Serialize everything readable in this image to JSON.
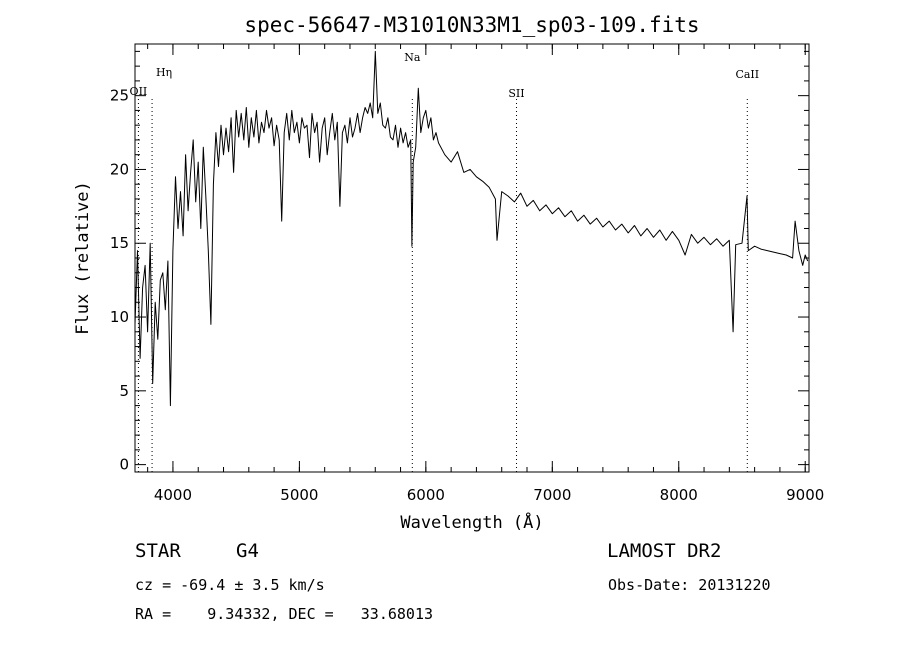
{
  "chart_data": {
    "type": "line",
    "title": "spec-56647-M31010N33M1_sp03-109.fits",
    "xlabel": "Wavelength (Å)",
    "ylabel": "Flux (relative)",
    "xlim": [
      3700,
      9030
    ],
    "ylim": [
      -0.5,
      28.5
    ],
    "xticks": [
      4000,
      5000,
      6000,
      7000,
      8000,
      9000
    ],
    "yticks": [
      0,
      5,
      10,
      15,
      20,
      25
    ],
    "grid": false,
    "legend": "none",
    "line_color": "#000000",
    "reference_lines": [
      {
        "label": "Hη",
        "x": 3835
      },
      {
        "label": "OII",
        "x": 3727
      },
      {
        "label": "Na",
        "x": 5893
      },
      {
        "label": "SII",
        "x": 6717
      },
      {
        "label": "CaII",
        "x": 8542
      }
    ],
    "series": [
      {
        "x": [
          3700,
          3720,
          3740,
          3760,
          3780,
          3800,
          3820,
          3840,
          3860,
          3880,
          3900,
          3920,
          3940,
          3960,
          3980,
          4000,
          4020,
          4040,
          4060,
          4080,
          4100,
          4120,
          4140,
          4160,
          4180,
          4200,
          4220,
          4240,
          4260,
          4280,
          4300,
          4320,
          4340,
          4360,
          4380,
          4400,
          4420,
          4440,
          4460,
          4480,
          4500,
          4520,
          4540,
          4560,
          4580,
          4600,
          4620,
          4640,
          4660,
          4680,
          4700,
          4720,
          4740,
          4760,
          4780,
          4800,
          4820,
          4840,
          4860,
          4880,
          4900,
          4920,
          4940,
          4960,
          4980,
          5000,
          5020,
          5040,
          5060,
          5080,
          5100,
          5120,
          5140,
          5160,
          5180,
          5200,
          5220,
          5240,
          5260,
          5280,
          5300,
          5320,
          5340,
          5360,
          5380,
          5400,
          5420,
          5440,
          5460,
          5480,
          5500,
          5520,
          5540,
          5560,
          5580,
          5600,
          5620,
          5640,
          5660,
          5680,
          5700,
          5720,
          5740,
          5760,
          5780,
          5800,
          5820,
          5840,
          5860,
          5880,
          5890,
          5900,
          5920,
          5940,
          5960,
          5980,
          6000,
          6020,
          6040,
          6060,
          6080,
          6100,
          6150,
          6200,
          6250,
          6300,
          6350,
          6400,
          6450,
          6500,
          6550,
          6563,
          6600,
          6650,
          6700,
          6750,
          6800,
          6850,
          6900,
          6950,
          7000,
          7050,
          7100,
          7150,
          7200,
          7250,
          7300,
          7350,
          7400,
          7450,
          7500,
          7550,
          7600,
          7650,
          7700,
          7750,
          7800,
          7850,
          7900,
          7950,
          8000,
          8050,
          8100,
          8150,
          8200,
          8250,
          8300,
          8350,
          8400,
          8430,
          8450,
          8500,
          8540,
          8550,
          8600,
          8650,
          8700,
          8750,
          8800,
          8850,
          8900,
          8920,
          8950,
          8980,
          9000,
          9020
        ],
        "y": [
          9.5,
          14.5,
          7.2,
          12.0,
          13.5,
          9.0,
          15.0,
          5.5,
          11.0,
          8.5,
          12.5,
          13.0,
          10.5,
          13.8,
          4.0,
          14.5,
          19.5,
          16.0,
          18.5,
          15.5,
          21.0,
          17.2,
          19.8,
          22.0,
          17.8,
          20.5,
          16.0,
          21.5,
          18.2,
          14.5,
          9.5,
          19.0,
          22.5,
          20.2,
          23.0,
          21.0,
          22.8,
          21.2,
          23.5,
          19.8,
          24.0,
          22.2,
          23.8,
          22.0,
          24.2,
          21.5,
          23.5,
          22.2,
          24.0,
          21.8,
          23.2,
          22.5,
          24.0,
          22.8,
          23.5,
          21.6,
          23.0,
          22.0,
          16.5,
          22.5,
          23.8,
          22.0,
          24.0,
          22.5,
          23.2,
          21.8,
          23.5,
          22.8,
          23.0,
          20.8,
          23.8,
          22.5,
          23.2,
          20.5,
          22.8,
          23.5,
          21.0,
          22.5,
          23.8,
          22.0,
          23.2,
          17.5,
          22.5,
          23.0,
          21.8,
          23.5,
          22.2,
          22.8,
          23.8,
          22.5,
          23.5,
          24.2,
          23.8,
          24.5,
          23.5,
          28.0,
          23.8,
          24.5,
          23.0,
          22.8,
          23.5,
          22.2,
          22.0,
          23.0,
          21.5,
          22.8,
          21.8,
          22.5,
          21.5,
          22.0,
          14.8,
          20.5,
          21.5,
          25.5,
          22.5,
          23.5,
          24.0,
          22.8,
          23.5,
          22.0,
          22.5,
          21.8,
          21.0,
          20.5,
          21.2,
          19.8,
          20.0,
          19.5,
          19.2,
          18.8,
          18.0,
          15.2,
          18.5,
          18.2,
          17.8,
          18.4,
          17.5,
          17.9,
          17.2,
          17.6,
          17.0,
          17.4,
          16.8,
          17.2,
          16.5,
          16.9,
          16.3,
          16.7,
          16.1,
          16.5,
          15.9,
          16.3,
          15.7,
          16.2,
          15.5,
          16.0,
          15.4,
          15.9,
          15.2,
          15.8,
          15.2,
          14.2,
          15.6,
          15.0,
          15.4,
          14.9,
          15.3,
          14.8,
          15.2,
          9.0,
          14.9,
          15.0,
          18.2,
          14.5,
          14.8,
          14.6,
          14.5,
          14.4,
          14.3,
          14.2,
          14.0,
          16.5,
          14.5,
          13.5,
          14.2,
          13.8
        ]
      }
    ]
  },
  "info": {
    "object_class": "STAR",
    "subclass": "G4",
    "survey": "LAMOST DR2",
    "redshift": "cz = -69.4 ± 3.5 km/s",
    "obs_date": "Obs-Date: 20131220",
    "coords": "RA =    9.34332, DEC =   33.68013"
  }
}
